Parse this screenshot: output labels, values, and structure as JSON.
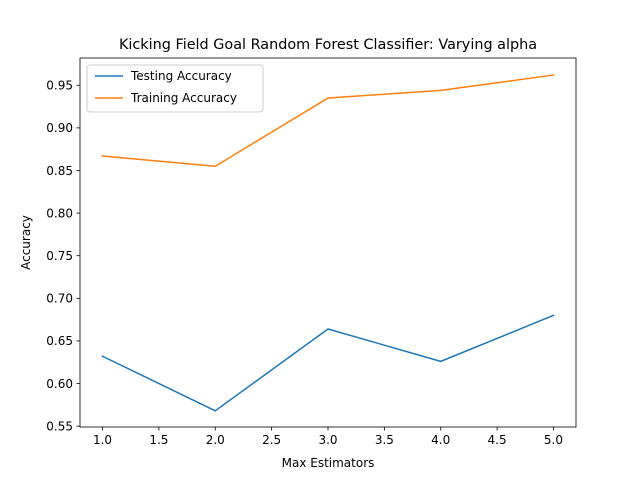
{
  "chart_data": {
    "type": "line",
    "title": "Kicking Field Goal Random Forest Classifier: Varying alpha",
    "xlabel": "Max Estimators",
    "ylabel": "Accuracy",
    "x": [
      1.0,
      2.0,
      3.0,
      4.0,
      5.0
    ],
    "xlim": [
      0.8,
      5.2
    ],
    "ylim": [
      0.549,
      0.982
    ],
    "x_ticks": [
      "1.0",
      "1.5",
      "2.0",
      "2.5",
      "3.0",
      "3.5",
      "4.0",
      "4.5",
      "5.0"
    ],
    "x_tick_values": [
      1.0,
      1.5,
      2.0,
      2.5,
      3.0,
      3.5,
      4.0,
      4.5,
      5.0
    ],
    "y_ticks": [
      "0.55",
      "0.60",
      "0.65",
      "0.70",
      "0.75",
      "0.80",
      "0.85",
      "0.90",
      "0.95"
    ],
    "y_tick_values": [
      0.55,
      0.6,
      0.65,
      0.7,
      0.75,
      0.8,
      0.85,
      0.9,
      0.95
    ],
    "grid": false,
    "legend_position": "top-left",
    "series": [
      {
        "name": "Testing Accuracy",
        "color": "#1f77b4",
        "values": [
          0.632,
          0.568,
          0.664,
          0.626,
          0.68
        ]
      },
      {
        "name": "Training Accuracy",
        "color": "#ff7f0e",
        "values": [
          0.867,
          0.855,
          0.935,
          0.944,
          0.962
        ]
      }
    ]
  }
}
